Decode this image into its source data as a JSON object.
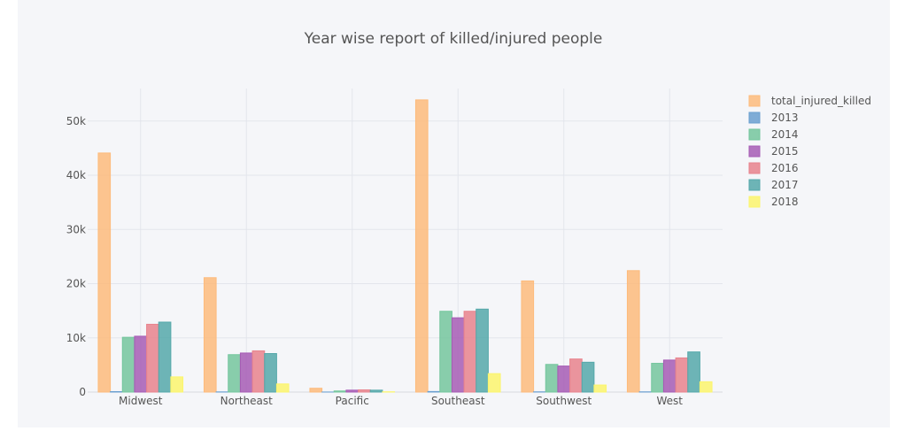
{
  "chart_data": {
    "type": "bar",
    "title": "Year wise report of killed/injured people",
    "xlabel": "",
    "ylabel": "",
    "ylim": [
      0,
      56000
    ],
    "y_ticks": [
      0,
      10000,
      20000,
      30000,
      40000,
      50000
    ],
    "y_tick_labels": [
      "0",
      "10k",
      "20k",
      "30k",
      "40k",
      "50k"
    ],
    "categories": [
      "Midwest",
      "Northeast",
      "Pacific",
      "Southeast",
      "Southwest",
      "West"
    ],
    "grid": true,
    "legend_position": "top-right",
    "series": [
      {
        "name": "total_injured_killed",
        "color": "#fdbb7c",
        "values": [
          44100,
          21100,
          700,
          53900,
          20500,
          22400
        ]
      },
      {
        "name": "2013",
        "color": "#6a9fd0",
        "values": [
          80,
          30,
          10,
          100,
          40,
          40
        ]
      },
      {
        "name": "2014",
        "color": "#74c69d",
        "values": [
          10100,
          6900,
          200,
          14900,
          5100,
          5300
        ]
      },
      {
        "name": "2015",
        "color": "#a65cb5",
        "values": [
          10300,
          7200,
          350,
          13700,
          4800,
          5900
        ]
      },
      {
        "name": "2016",
        "color": "#e8838d",
        "values": [
          12500,
          7600,
          400,
          14900,
          6100,
          6300
        ]
      },
      {
        "name": "2017",
        "color": "#55a8aa",
        "values": [
          12900,
          7100,
          350,
          15300,
          5500,
          7400
        ]
      },
      {
        "name": "2018",
        "color": "#fbf56d",
        "values": [
          2800,
          1500,
          50,
          3400,
          1300,
          1900
        ]
      }
    ]
  }
}
